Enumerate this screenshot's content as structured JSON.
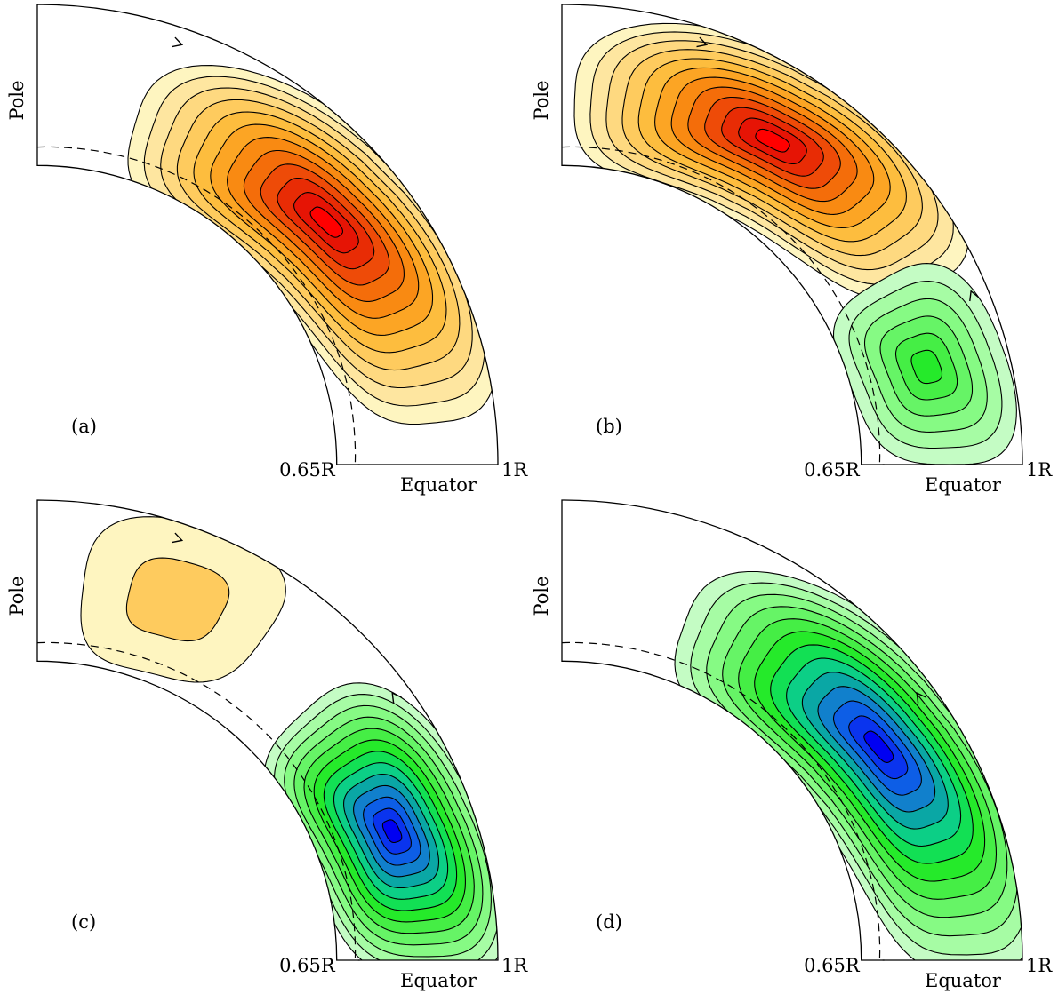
{
  "labels": {
    "pole": "Pole",
    "equator": "Equator",
    "inner_radius": "0.65R",
    "outer_radius": "1R"
  },
  "panels": [
    {
      "id": "a",
      "tag": "(a)",
      "cells": [
        {
          "sign": "positive",
          "levels": 12,
          "center_theta_deg": 40,
          "center_r": 0.82,
          "extent_theta_deg": 34,
          "extent_r": 0.2
        }
      ]
    },
    {
      "id": "b",
      "tag": "(b)",
      "cells": [
        {
          "sign": "positive",
          "levels": 12,
          "center_theta_deg": 57,
          "center_r": 0.84,
          "extent_theta_deg": 31,
          "extent_r": 0.19
        },
        {
          "sign": "negative",
          "levels": 6,
          "center_theta_deg": 15,
          "center_r": 0.82,
          "extent_theta_deg": 15,
          "extent_r": 0.17
        }
      ]
    },
    {
      "id": "c",
      "tag": "(c)",
      "cells": [
        {
          "sign": "positive",
          "levels": 2,
          "center_theta_deg": 69,
          "center_r": 0.84,
          "extent_theta_deg": 14,
          "extent_r": 0.17
        },
        {
          "sign": "negative",
          "levels": 13,
          "center_theta_deg": 20,
          "center_r": 0.82,
          "extent_theta_deg": 23,
          "extent_r": 0.2
        }
      ]
    },
    {
      "id": "d",
      "tag": "(d)",
      "cells": [
        {
          "sign": "negative",
          "levels": 13,
          "center_theta_deg": 34,
          "center_r": 0.83,
          "extent_theta_deg": 36,
          "extent_r": 0.2
        }
      ]
    }
  ],
  "colors": {
    "positive": [
      "#fef5c0",
      "#fee6a0",
      "#fed980",
      "#fecb5e",
      "#fdbd3e",
      "#fca524",
      "#f98a12",
      "#f46d0a",
      "#ee4b08",
      "#e82c05",
      "#e61405",
      "#ff0000"
    ],
    "negative": [
      "#c4fcc4",
      "#a6fca4",
      "#86fa84",
      "#66f466",
      "#45ee45",
      "#25ea2a",
      "#12e054",
      "#0ccf86",
      "#0aa7a5",
      "#1180cc",
      "#0d5ee6",
      "#0a34ee",
      "#0000f2"
    ]
  }
}
